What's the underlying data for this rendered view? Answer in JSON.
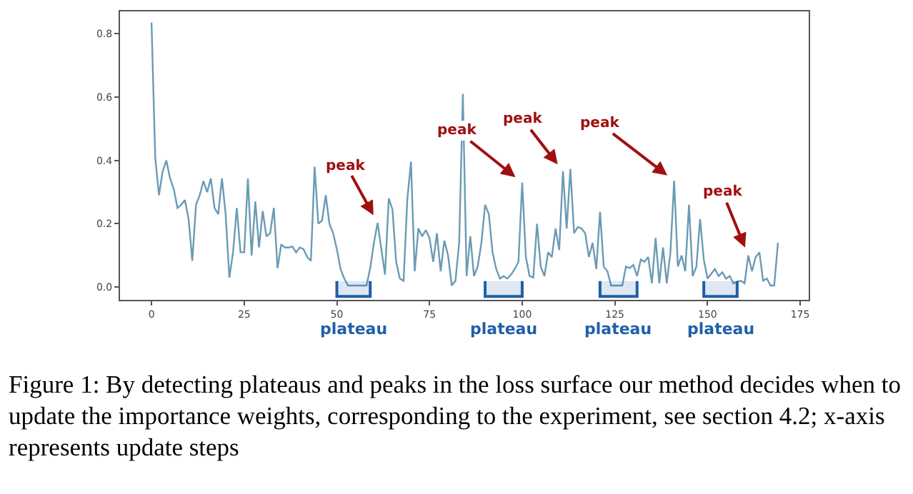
{
  "chart_data": {
    "type": "line",
    "x": [
      0,
      1,
      2,
      3,
      4,
      5,
      6,
      7,
      8,
      9,
      10,
      11,
      12,
      13,
      14,
      15,
      16,
      17,
      18,
      19,
      20,
      21,
      22,
      23,
      24,
      25,
      26,
      27,
      28,
      29,
      30,
      31,
      32,
      33,
      34,
      35,
      36,
      37,
      38,
      39,
      40,
      41,
      42,
      43,
      44,
      45,
      46,
      47,
      48,
      49,
      50,
      51,
      52,
      53,
      54,
      55,
      56,
      57,
      58,
      59,
      60,
      61,
      62,
      63,
      64,
      65,
      66,
      67,
      68,
      69,
      70,
      71,
      72,
      73,
      74,
      75,
      76,
      77,
      78,
      79,
      80,
      81,
      82,
      83,
      84,
      85,
      86,
      87,
      88,
      89,
      90,
      91,
      92,
      93,
      94,
      95,
      96,
      97,
      98,
      99,
      100,
      101,
      102,
      103,
      104,
      105,
      106,
      107,
      108,
      109,
      110,
      111,
      112,
      113,
      114,
      115,
      116,
      117,
      118,
      119,
      120,
      121,
      122,
      123,
      124,
      125,
      126,
      127,
      128,
      129,
      130,
      131,
      132,
      133,
      134,
      135,
      136,
      137,
      138,
      139,
      140,
      141,
      142,
      143,
      144,
      145,
      146,
      147,
      148,
      149,
      150,
      151,
      152,
      153,
      154,
      155,
      156,
      157,
      158,
      159,
      160,
      161,
      162,
      163,
      164,
      165,
      166,
      167,
      168,
      169
    ],
    "series": [
      {
        "color": "#6a9bb5",
        "values": [
          0.835,
          0.41,
          0.29,
          0.365,
          0.4,
          0.343,
          0.31,
          0.25,
          0.26,
          0.275,
          0.215,
          0.083,
          0.26,
          0.29,
          0.335,
          0.3,
          0.343,
          0.25,
          0.23,
          0.343,
          0.23,
          0.03,
          0.11,
          0.25,
          0.11,
          0.11,
          0.343,
          0.1,
          0.27,
          0.125,
          0.24,
          0.16,
          0.17,
          0.25,
          0.06,
          0.135,
          0.125,
          0.125,
          0.128,
          0.11,
          0.125,
          0.12,
          0.095,
          0.083,
          0.38,
          0.2,
          0.21,
          0.29,
          0.2,
          0.17,
          0.12,
          0.057,
          0.027,
          0.005,
          0.005,
          0.005,
          0.005,
          0.005,
          0.005,
          0.06,
          0.14,
          0.203,
          0.12,
          0.04,
          0.28,
          0.245,
          0.08,
          0.027,
          0.02,
          0.275,
          0.396,
          0.05,
          0.185,
          0.16,
          0.18,
          0.155,
          0.08,
          0.17,
          0.05,
          0.147,
          0.1,
          0.005,
          0.02,
          0.14,
          0.61,
          0.035,
          0.16,
          0.035,
          0.065,
          0.14,
          0.26,
          0.23,
          0.11,
          0.057,
          0.027,
          0.035,
          0.027,
          0.04,
          0.057,
          0.08,
          0.33,
          0.095,
          0.035,
          0.03,
          0.2,
          0.065,
          0.035,
          0.11,
          0.095,
          0.185,
          0.117,
          0.366,
          0.185,
          0.373,
          0.17,
          0.19,
          0.185,
          0.17,
          0.095,
          0.14,
          0.057,
          0.238,
          0.065,
          0.05,
          0.005,
          0.005,
          0.005,
          0.005,
          0.065,
          0.06,
          0.07,
          0.035,
          0.087,
          0.08,
          0.095,
          0.012,
          0.155,
          0.012,
          0.125,
          0.012,
          0.11,
          0.336,
          0.065,
          0.1,
          0.05,
          0.26,
          0.035,
          0.065,
          0.215,
          0.087,
          0.027,
          0.042,
          0.057,
          0.035,
          0.047,
          0.027,
          0.035,
          0.012,
          0.017,
          0.02,
          0.012,
          0.1,
          0.05,
          0.095,
          0.11,
          0.02,
          0.027,
          0.005,
          0.005,
          0.14
        ]
      }
    ],
    "xlim": [
      -8.5,
      177.3
    ],
    "ylim": [
      -0.04,
      0.87
    ],
    "xticks": [
      0,
      25,
      50,
      75,
      100,
      125,
      150,
      175
    ],
    "yticks": [
      {
        "value": 0,
        "label": "0.0"
      },
      {
        "value": 0.2,
        "label": "0.2"
      },
      {
        "value": 0.4,
        "label": "0.4"
      },
      {
        "value": 0.6,
        "label": "0.6"
      },
      {
        "value": 0.8,
        "label": "0.8"
      }
    ],
    "grid": false,
    "marker": "none",
    "line_style": "solid",
    "bands": [
      {
        "axis": "x",
        "from": 50,
        "to": 59,
        "label": "plateau",
        "color": "#1f5fa8"
      },
      {
        "axis": "x",
        "from": 90,
        "to": 100,
        "label": "plateau",
        "color": "#1f5fa8"
      },
      {
        "axis": "x",
        "from": 121,
        "to": 131,
        "label": "plateau",
        "color": "#1f5fa8"
      },
      {
        "axis": "x",
        "from": 149,
        "to": 158,
        "label": "plateau",
        "color": "#1f5fa8"
      }
    ],
    "annotations": [
      {
        "text": "peak",
        "x": 61,
        "y": 0.203
      },
      {
        "text": "peak",
        "x": 100,
        "y": 0.33
      },
      {
        "text": "peak",
        "x": 111,
        "y": 0.366
      },
      {
        "text": "peak",
        "x": 141,
        "y": 0.336
      },
      {
        "text": "peak",
        "x": 161,
        "y": 0.1
      },
      "Figure 1: By detecting plateaus and peaks in the loss surface our method decides when to update the importance weights, corresponding to the experiment, see section 4.2; x-axis represents update steps"
    ]
  }
}
